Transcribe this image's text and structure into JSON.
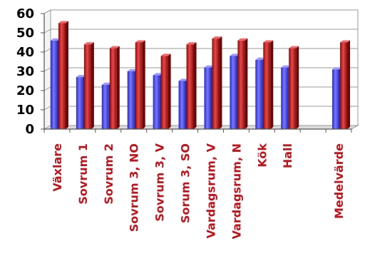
{
  "chart_data": {
    "type": "bar",
    "title": "",
    "xlabel": "",
    "ylabel": "",
    "ylim": [
      0,
      60
    ],
    "yticks": [
      0,
      10,
      20,
      30,
      40,
      50,
      60
    ],
    "grid": true,
    "categories": [
      "Växlare",
      "Sovrum 1",
      "Sovrum 2",
      "Sovrum 3, NO",
      "Sovrum 3, V",
      "Sorum 3, SO",
      "Vardagsrum, V",
      "Vardagsrum, N",
      "Kök",
      "Hall",
      "",
      "Medelvärde"
    ],
    "series": [
      {
        "color": "#4040e0",
        "values": [
          46,
          27,
          23,
          30,
          28,
          25,
          32,
          38,
          36,
          32,
          null,
          31
        ]
      },
      {
        "color": "#c01818",
        "values": [
          55,
          44,
          42,
          45,
          38,
          44,
          47,
          46,
          45,
          42,
          null,
          45
        ]
      }
    ],
    "tick_label_color": "#c0141c"
  }
}
